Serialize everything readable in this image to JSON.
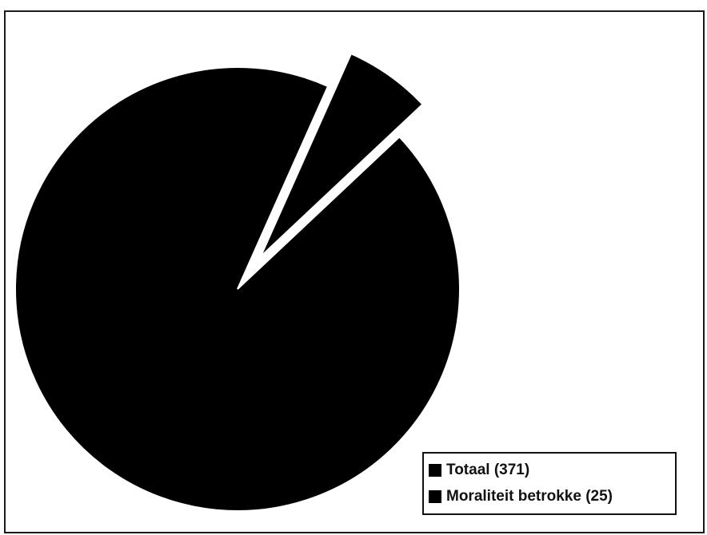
{
  "chart_data": {
    "type": "pie",
    "title": "",
    "slices": [
      {
        "label": "Totaal (371)",
        "value": 371,
        "color": "#000000",
        "exploded": false
      },
      {
        "label": "Moraliteit betrokke (25)",
        "value": 25,
        "color": "#000000",
        "exploded": true
      }
    ],
    "legend": {
      "position": "bottom-right",
      "items": [
        "Totaal (371)",
        "Moraliteit betrokke (25)"
      ]
    }
  }
}
